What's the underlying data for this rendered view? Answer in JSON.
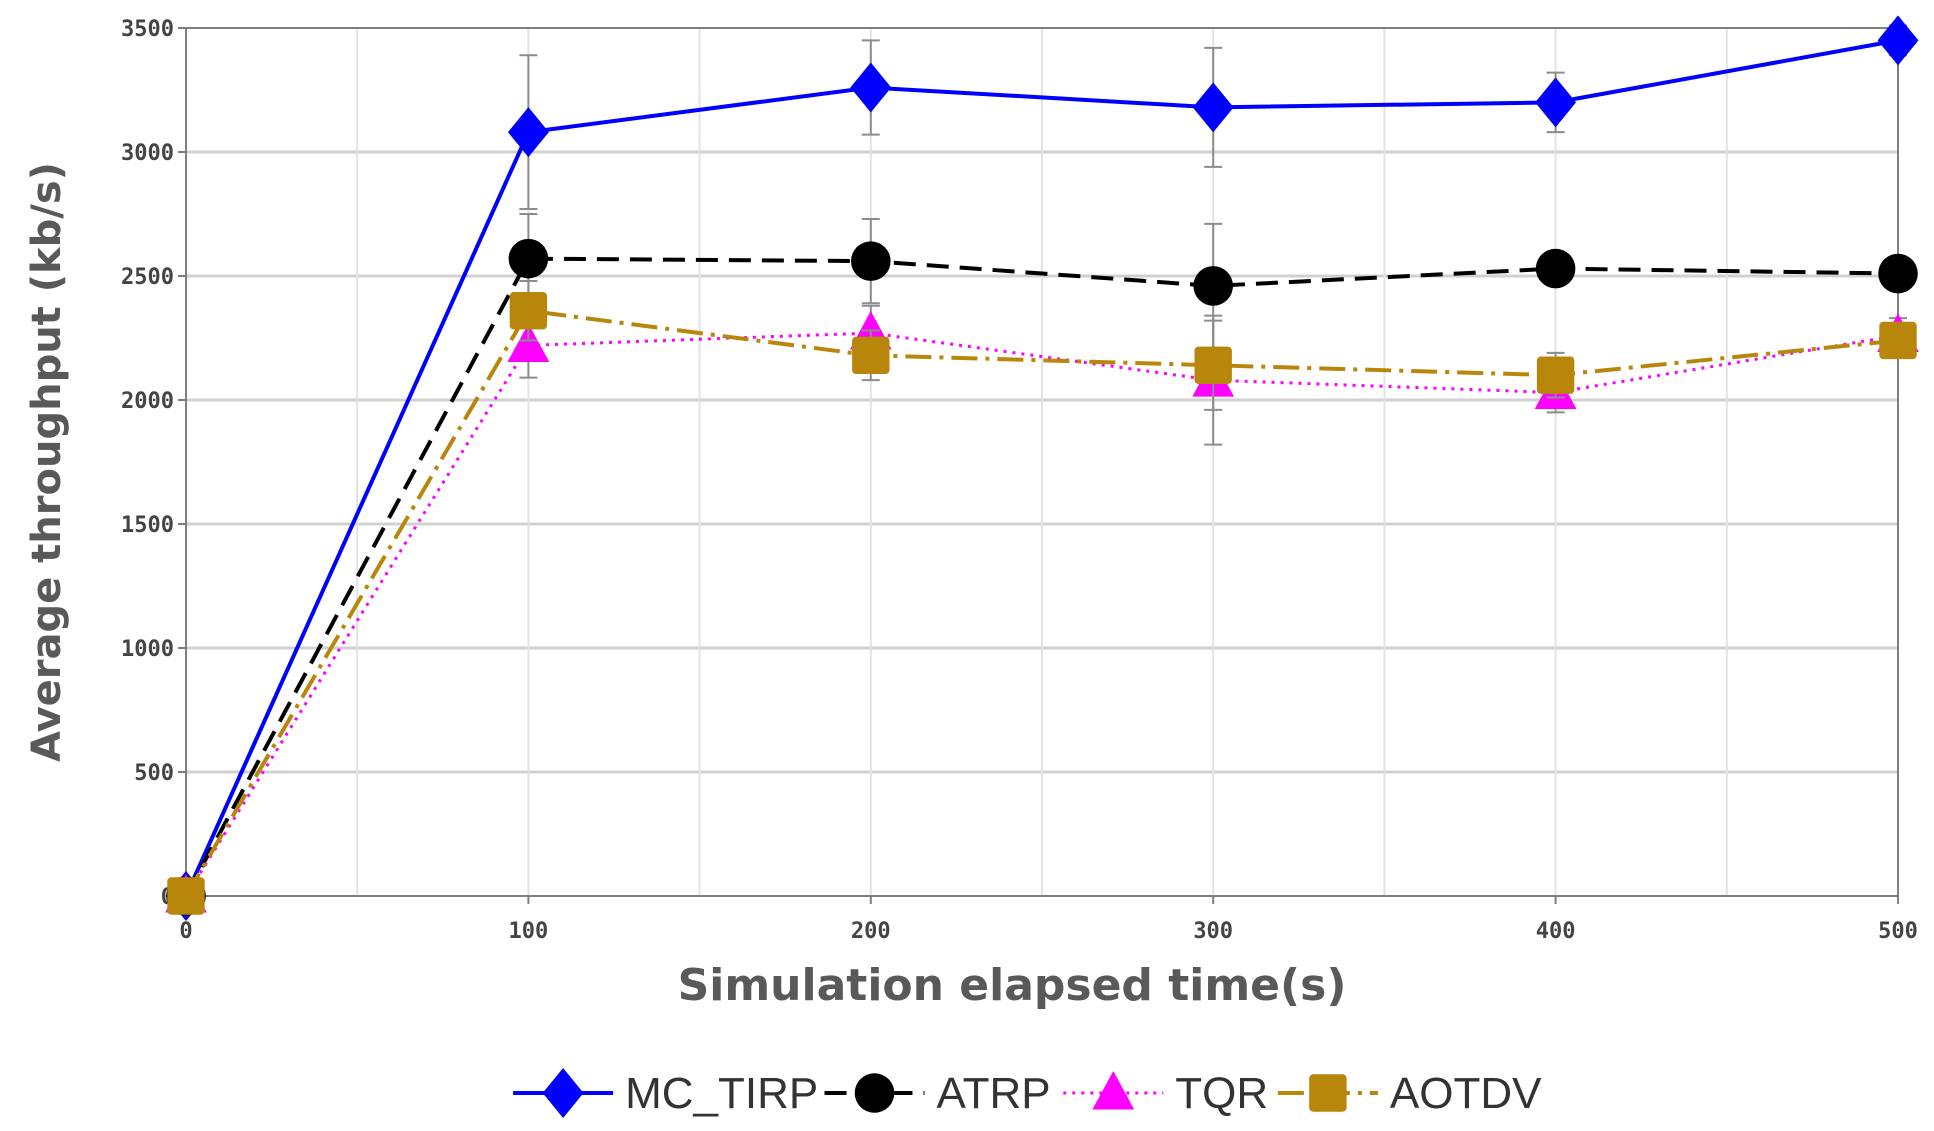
{
  "chart_data": {
    "type": "line",
    "title": "",
    "xlabel": "Simulation elapsed time(s)",
    "ylabel": "Average throughput (kb/s)",
    "x": [
      0,
      100,
      200,
      300,
      400,
      500
    ],
    "xlim": [
      0,
      500
    ],
    "ylim": [
      0,
      3500
    ],
    "xticks": [
      0,
      100,
      200,
      300,
      400,
      500
    ],
    "yticks": [
      0,
      500,
      1000,
      1500,
      2000,
      2500,
      3000,
      3500
    ],
    "xtick_labels": [
      "0",
      "100",
      "200",
      "300",
      "400",
      "500"
    ],
    "ytick_labels": [
      "0",
      "500",
      "1000",
      "1500",
      "2000",
      "2500",
      "3000",
      "3500"
    ],
    "grid": true,
    "legend_position": "bottom",
    "series": [
      {
        "name": "MC_TIRP",
        "color": "#0000ff",
        "marker": "diamond",
        "dash": "solid",
        "values": [
          0,
          3080,
          3260,
          3180,
          3200,
          3450
        ],
        "error": [
          0,
          310,
          190,
          240,
          120,
          60
        ]
      },
      {
        "name": "ATRP",
        "color": "#000000",
        "marker": "circle",
        "dash": "dashed",
        "values": [
          0,
          2570,
          2560,
          2460,
          2530,
          2510
        ],
        "error": [
          0,
          180,
          170,
          250,
          60,
          50
        ]
      },
      {
        "name": "TQR",
        "color": "#ff00ff",
        "marker": "triangle",
        "dash": "dotted",
        "values": [
          0,
          2220,
          2270,
          2080,
          2030,
          2260
        ],
        "error": [
          0,
          130,
          110,
          260,
          80,
          70
        ]
      },
      {
        "name": "AOTDV",
        "color": "#b8860b",
        "marker": "square",
        "dash": "dashdot",
        "values": [
          0,
          2360,
          2180,
          2140,
          2100,
          2240
        ],
        "error": [
          0,
          120,
          100,
          180,
          90,
          60
        ]
      }
    ]
  }
}
